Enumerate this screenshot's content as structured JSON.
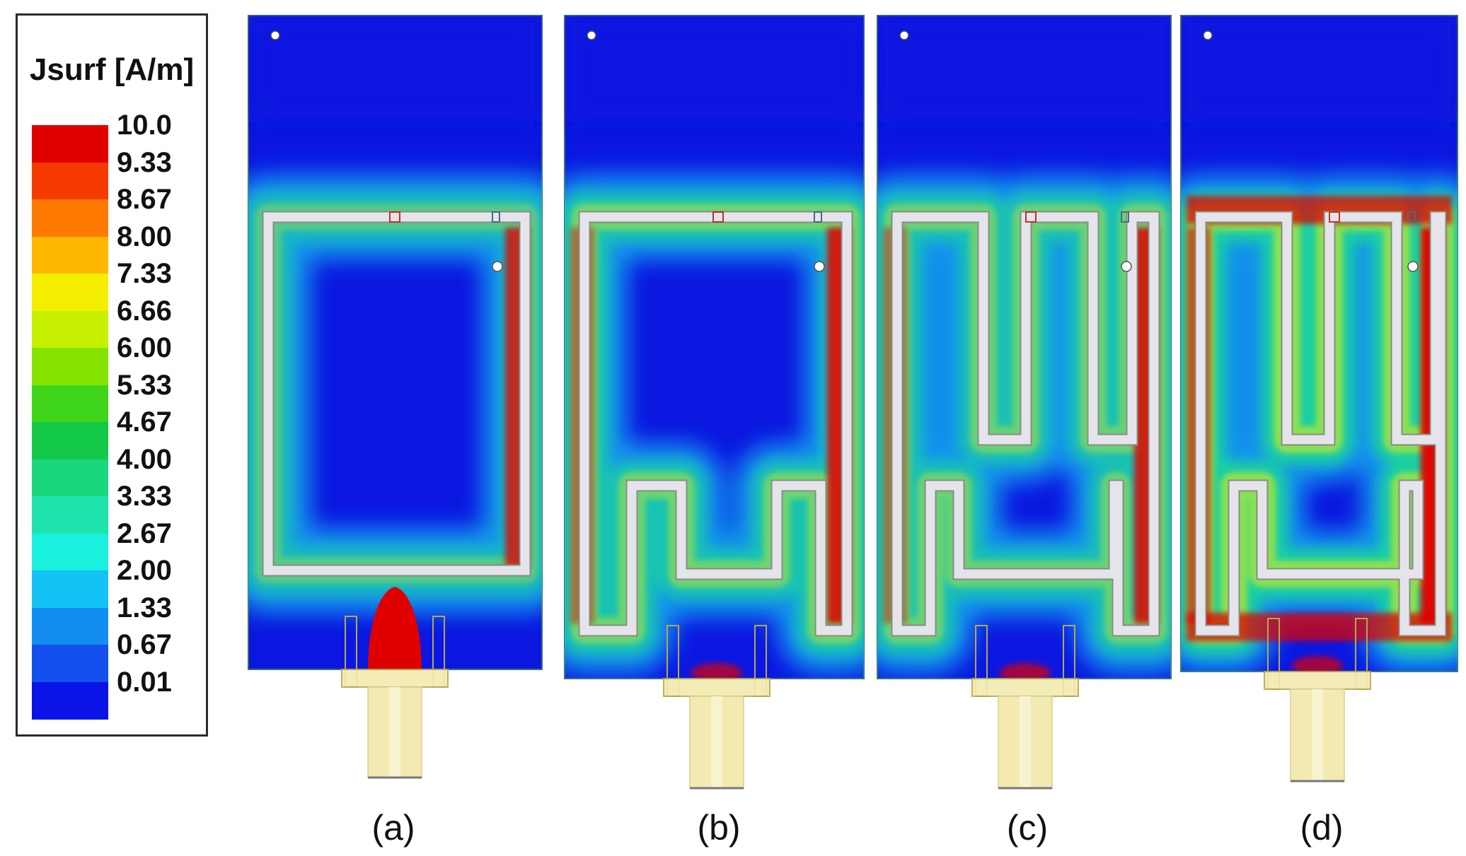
{
  "legend": {
    "title": "Jsurf [A/m]",
    "scale": [
      {
        "value": "10.0",
        "color": "#e00000"
      },
      {
        "value": "9.33",
        "color": "#f53a00"
      },
      {
        "value": "8.67",
        "color": "#ff7a00"
      },
      {
        "value": "8.00",
        "color": "#ffb800"
      },
      {
        "value": "7.33",
        "color": "#f4ee00"
      },
      {
        "value": "6.66",
        "color": "#c6f000"
      },
      {
        "value": "6.00",
        "color": "#86e300"
      },
      {
        "value": "5.33",
        "color": "#3fd61c"
      },
      {
        "value": "4.67",
        "color": "#14c947"
      },
      {
        "value": "4.00",
        "color": "#1ad67c"
      },
      {
        "value": "3.33",
        "color": "#1ee3ad"
      },
      {
        "value": "2.67",
        "color": "#1af0de"
      },
      {
        "value": "2.00",
        "color": "#14c3f5"
      },
      {
        "value": "1.33",
        "color": "#138ef0"
      },
      {
        "value": "0.67",
        "color": "#1350ee"
      },
      {
        "value": "0.01",
        "color": "#0a14e6"
      }
    ]
  },
  "panels": [
    {
      "label": "(a)",
      "design": "rectangular loop"
    },
    {
      "label": "(b)",
      "design": "loop with one bottom meander"
    },
    {
      "label": "(c)",
      "design": "loop with top and bottom meanders"
    },
    {
      "label": "(d)",
      "design": "loop with top and bottom meanders"
    }
  ],
  "colors": {
    "background_field": "#0b17e0",
    "trace_fill": "#e4e4ea",
    "trace_outline": "#8a8a8a",
    "feed_line": "#f2eab0",
    "feed_outline": "#b5a850"
  }
}
